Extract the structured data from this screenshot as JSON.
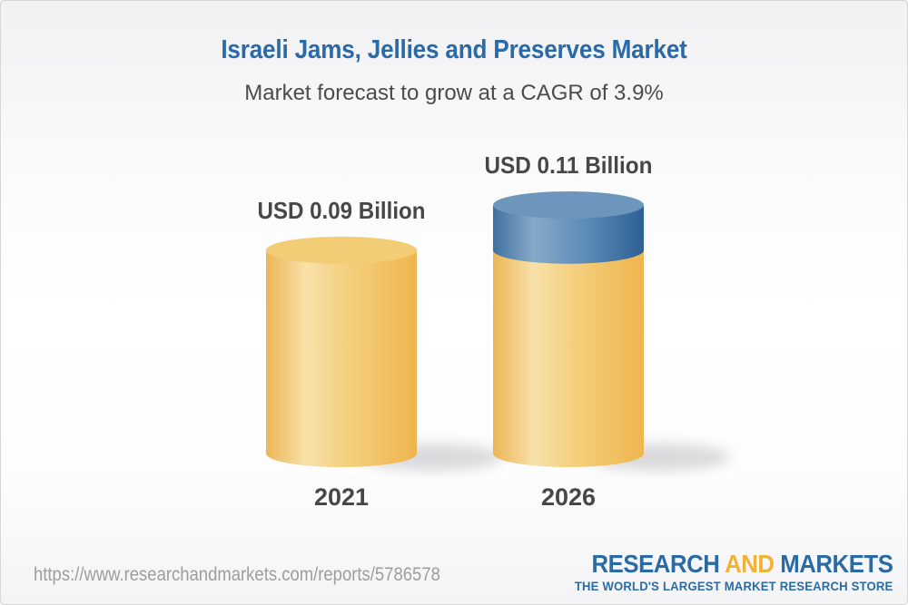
{
  "header": {
    "title": "Israeli Jams, Jellies and Preserves Market",
    "subtitle": "Market forecast to grow at a CAGR of 3.9%"
  },
  "chart_data": {
    "type": "bar",
    "variant": "3d-cylinder",
    "title": "Israeli Jams, Jellies and Preserves Market",
    "subtitle": "Market forecast to grow at a CAGR of 3.9%",
    "unit": "USD Billion",
    "cagr_percent": 3.9,
    "categories": [
      "2021",
      "2026"
    ],
    "values": [
      0.09,
      0.11
    ],
    "labels": [
      "USD 0.09 Billion",
      "USD 0.11 Billion"
    ],
    "ylim": [
      0,
      0.11
    ],
    "legend": "none",
    "grid": "off",
    "colors": {
      "base_segment": "#f3c96f",
      "base_top": "#f3cc76",
      "growth_segment": "#5d8cb7",
      "growth_top": "#6d96bc"
    }
  },
  "footer": {
    "url": "https://www.researchandmarkets.com/reports/5786578",
    "logo": {
      "word1": "RESEARCH",
      "word2": "AND",
      "word3": "MARKETS",
      "tagline": "THE WORLD'S LARGEST MARKET RESEARCH STORE"
    }
  },
  "colors": {
    "title_blue": "#2a6aa8",
    "text_dark": "#474747",
    "url_gray": "#9d9d9d",
    "logo_blue": "#2b6ba5",
    "logo_gold": "#efb338",
    "border": "#d7d7d9"
  }
}
